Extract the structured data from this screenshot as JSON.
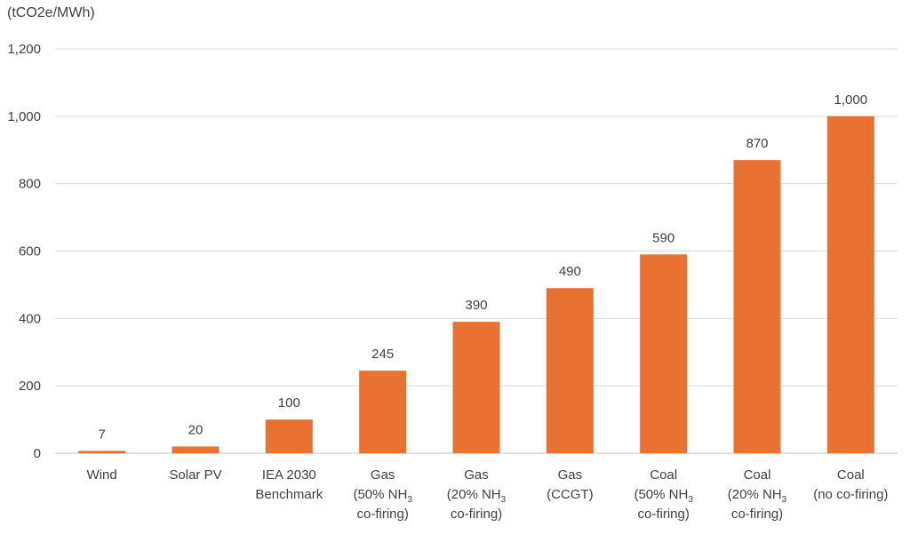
{
  "chart_data": {
    "type": "bar",
    "title": "",
    "ylabel": "(tCO2e/MWh)",
    "xlabel": "",
    "ylim": [
      0,
      1200
    ],
    "yticks": [
      0,
      200,
      400,
      600,
      800,
      1000,
      1200
    ],
    "ytick_labels": [
      "0",
      "200",
      "400",
      "600",
      "800",
      "1,000",
      "1,200"
    ],
    "grid": true,
    "bar_color": "#E97132",
    "categories": [
      [
        "Wind"
      ],
      [
        "Solar PV"
      ],
      [
        "IEA 2030",
        "Benchmark"
      ],
      [
        "Gas",
        "(50% NH3",
        "co-firing)"
      ],
      [
        "Gas",
        "(20% NH3",
        "co-firing)"
      ],
      [
        "Gas",
        "(CCGT)"
      ],
      [
        "Coal",
        "(50% NH3",
        "co-firing)"
      ],
      [
        "Coal",
        "(20% NH3",
        "co-firing)"
      ],
      [
        "Coal",
        "(no co-firing)"
      ]
    ],
    "values": [
      7,
      20,
      100,
      245,
      390,
      490,
      590,
      870,
      1000
    ],
    "data_labels": [
      "7",
      "20",
      "100",
      "245",
      "390",
      "490",
      "590",
      "870",
      "1,000"
    ]
  }
}
